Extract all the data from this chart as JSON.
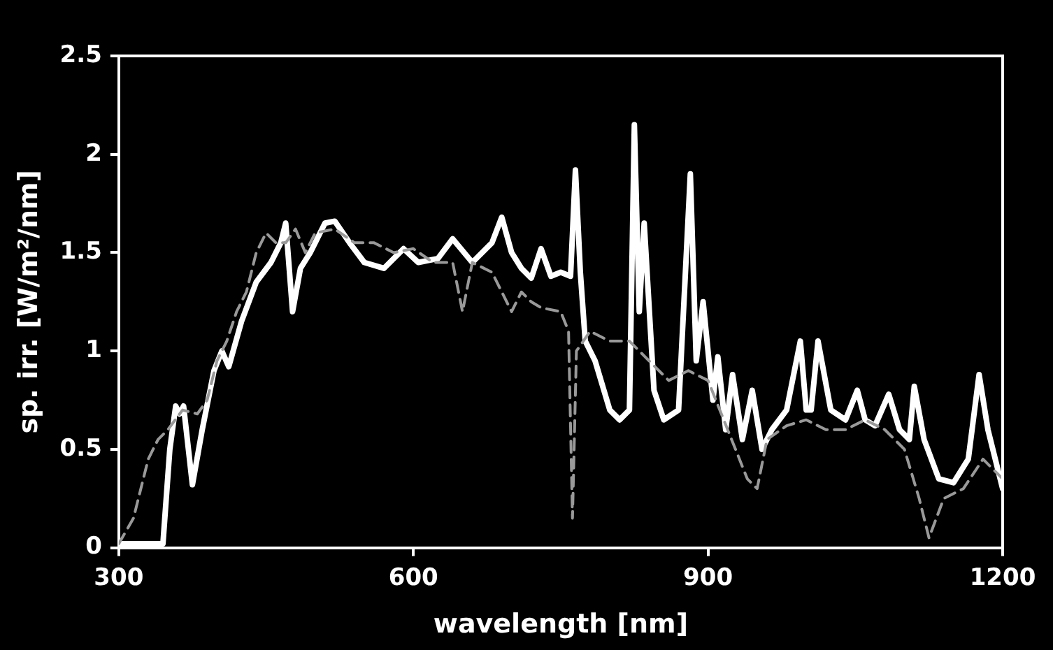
{
  "chart_data": {
    "type": "line",
    "xlabel": "wavelength [nm]",
    "ylabel": "sp. irr. [W/m²/nm]",
    "xlim": [
      300,
      1200
    ],
    "xticks": [
      300,
      600,
      900,
      1200
    ],
    "ylim": [
      0,
      2.5
    ],
    "yticks": [
      0,
      0.5,
      1,
      1.5,
      2,
      2.5
    ],
    "grid": false,
    "legend": false,
    "marker": "none",
    "series": [
      {
        "color": "#999999",
        "line_style": "dashed",
        "x": [
          300,
          315,
          330,
          340,
          350,
          365,
          380,
          390,
          400,
          410,
          420,
          430,
          440,
          450,
          460,
          470,
          480,
          490,
          500,
          520,
          540,
          560,
          580,
          600,
          620,
          640,
          650,
          660,
          680,
          700,
          710,
          720,
          730,
          750,
          758,
          762,
          766,
          780,
          800,
          820,
          840,
          860,
          880,
          900,
          920,
          940,
          950,
          960,
          980,
          1000,
          1020,
          1040,
          1060,
          1080,
          1100,
          1115,
          1125,
          1140,
          1160,
          1180,
          1200
        ],
        "values": [
          0.02,
          0.15,
          0.45,
          0.55,
          0.6,
          0.7,
          0.68,
          0.75,
          0.95,
          1.05,
          1.2,
          1.3,
          1.5,
          1.6,
          1.55,
          1.55,
          1.62,
          1.5,
          1.6,
          1.62,
          1.55,
          1.55,
          1.5,
          1.52,
          1.45,
          1.45,
          1.2,
          1.45,
          1.4,
          1.2,
          1.3,
          1.25,
          1.22,
          1.2,
          1.1,
          0.15,
          1.0,
          1.1,
          1.05,
          1.05,
          0.95,
          0.85,
          0.9,
          0.85,
          0.6,
          0.35,
          0.3,
          0.55,
          0.62,
          0.65,
          0.6,
          0.6,
          0.65,
          0.6,
          0.5,
          0.25,
          0.05,
          0.25,
          0.3,
          0.45,
          0.35
        ]
      },
      {
        "color": "#ffffff",
        "line_style": "solid",
        "x": [
          300,
          340,
          345,
          352,
          358,
          362,
          366,
          375,
          385,
          397,
          405,
          412,
          425,
          440,
          455,
          465,
          470,
          477,
          485,
          495,
          510,
          520,
          535,
          550,
          570,
          590,
          605,
          625,
          640,
          660,
          680,
          690,
          700,
          710,
          720,
          730,
          740,
          750,
          760,
          765,
          770,
          775,
          785,
          800,
          810,
          820,
          825,
          830,
          835,
          845,
          855,
          870,
          882,
          888,
          895,
          905,
          910,
          918,
          925,
          935,
          945,
          955,
          965,
          980,
          994,
          1000,
          1005,
          1012,
          1025,
          1040,
          1052,
          1060,
          1070,
          1084,
          1095,
          1105,
          1110,
          1120,
          1135,
          1150,
          1165,
          1176,
          1185,
          1200
        ],
        "values": [
          0.02,
          0.02,
          0.02,
          0.5,
          0.72,
          0.68,
          0.72,
          0.32,
          0.6,
          0.9,
          1.0,
          0.92,
          1.15,
          1.35,
          1.45,
          1.55,
          1.65,
          1.2,
          1.42,
          1.5,
          1.65,
          1.66,
          1.55,
          1.45,
          1.42,
          1.52,
          1.45,
          1.47,
          1.57,
          1.45,
          1.55,
          1.68,
          1.5,
          1.42,
          1.37,
          1.52,
          1.38,
          1.4,
          1.38,
          1.92,
          1.4,
          1.05,
          0.95,
          0.7,
          0.65,
          0.7,
          2.15,
          1.2,
          1.65,
          0.8,
          0.65,
          0.7,
          1.9,
          0.95,
          1.25,
          0.75,
          0.97,
          0.6,
          0.88,
          0.55,
          0.8,
          0.5,
          0.6,
          0.7,
          1.05,
          0.7,
          0.7,
          1.05,
          0.7,
          0.65,
          0.8,
          0.65,
          0.62,
          0.78,
          0.6,
          0.55,
          0.82,
          0.55,
          0.35,
          0.33,
          0.45,
          0.88,
          0.6,
          0.3
        ]
      }
    ]
  }
}
